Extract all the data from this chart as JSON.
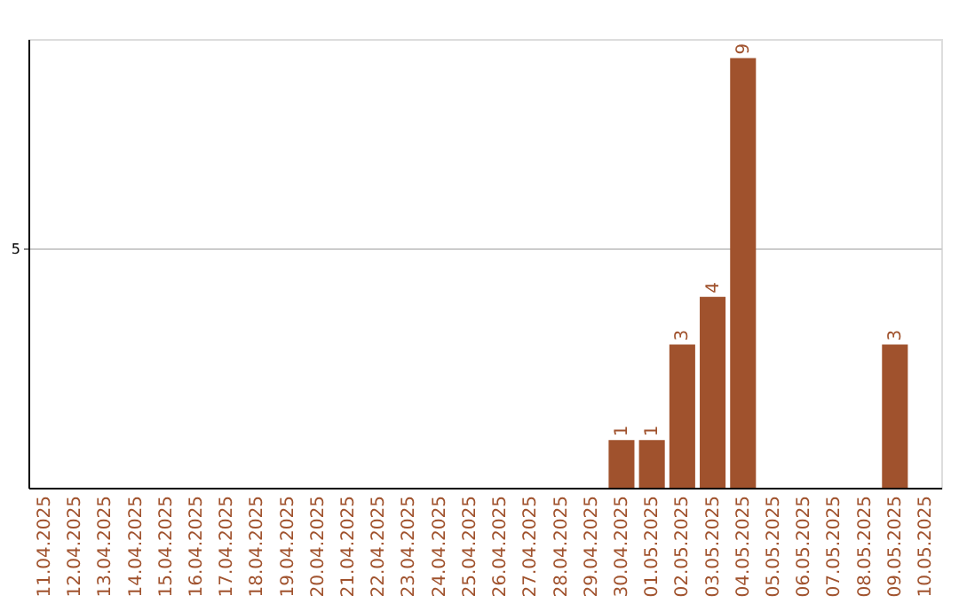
{
  "chart_data": {
    "type": "bar",
    "categories": [
      "11.04.2025",
      "12.04.2025",
      "13.04.2025",
      "14.04.2025",
      "15.04.2025",
      "16.04.2025",
      "17.04.2025",
      "18.04.2025",
      "19.04.2025",
      "20.04.2025",
      "21.04.2025",
      "22.04.2025",
      "23.04.2025",
      "24.04.2025",
      "25.04.2025",
      "26.04.2025",
      "27.04.2025",
      "28.04.2025",
      "29.04.2025",
      "30.04.2025",
      "01.05.2025",
      "02.05.2025",
      "03.05.2025",
      "04.05.2025",
      "05.05.2025",
      "06.05.2025",
      "07.05.2025",
      "08.05.2025",
      "09.05.2025",
      "10.05.2025"
    ],
    "values": [
      null,
      null,
      null,
      null,
      null,
      null,
      null,
      null,
      null,
      null,
      null,
      null,
      null,
      null,
      null,
      null,
      null,
      null,
      null,
      1,
      1,
      3,
      4,
      9,
      null,
      null,
      null,
      null,
      3,
      null
    ],
    "data_labels": true,
    "color": "#a0522d",
    "ylim": [
      0,
      9.4
    ],
    "yticks": [
      5
    ],
    "grid": "y"
  }
}
